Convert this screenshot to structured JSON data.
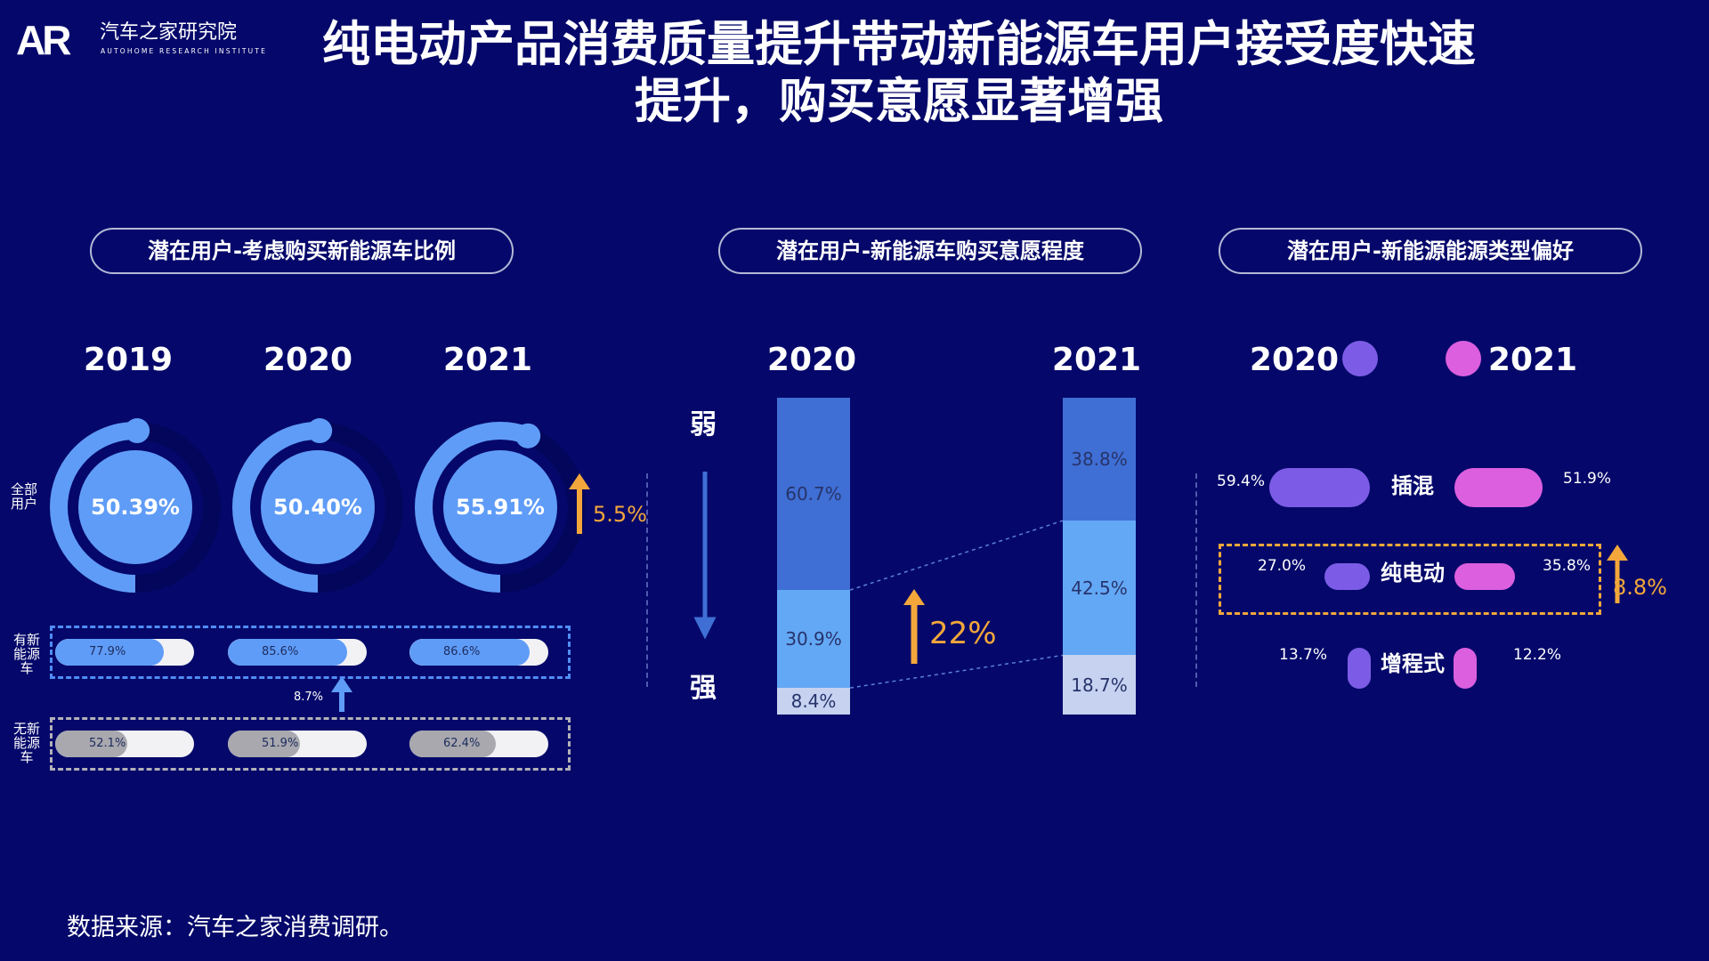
{
  "header": {
    "logo_mark": "AR",
    "logo_cn": "汽车之家研究院",
    "logo_en": "AUTOHOME RESEARCH INSTITUTE",
    "title_line1": "纯电动产品消费质量提升带动新能源车用户接受度快速",
    "title_line2": "提升，购买意愿显著增强"
  },
  "sections": {
    "left": "潜在用户-考虑购买新能源车比例",
    "middle": "潜在用户-新能源车购买意愿程度",
    "right": "潜在用户-新能源能源类型偏好"
  },
  "colors": {
    "background": "#05086a",
    "ring": "#5f9cf7",
    "ring_track": "#03065a",
    "accent_orange": "#f3a73b",
    "year_2020": "#7c5ce6",
    "year_2021": "#dc5fe0",
    "seg_weak": "#3f6fd4",
    "seg_mid": "#63a8f5",
    "seg_strong": "#c6d2f0"
  },
  "chart_data": [
    {
      "type": "pie",
      "title": "潜在用户-考虑购买新能源车比例",
      "row_labels": {
        "all": "全部\n用户",
        "has": "有新\n能源\n车",
        "none": "无新\n能源\n车"
      },
      "categories": [
        "2019",
        "2020",
        "2021"
      ],
      "series": [
        {
          "name": "全部用户",
          "values": [
            50.39,
            50.4,
            55.91
          ],
          "labels": [
            "50.39%",
            "50.40%",
            "55.91%"
          ]
        },
        {
          "name": "有新能源车",
          "values": [
            77.9,
            85.6,
            86.6
          ],
          "labels": [
            "77.9%",
            "85.6%",
            "86.6%"
          ]
        },
        {
          "name": "无新能源车",
          "values": [
            52.1,
            51.9,
            62.4
          ],
          "labels": [
            "52.1%",
            "51.9%",
            "62.4%"
          ]
        }
      ],
      "annotations": {
        "ring_increase": "5.5%",
        "gap_increase": "8.7%"
      }
    },
    {
      "type": "bar",
      "title": "潜在用户-新能源车购买意愿程度",
      "categories": [
        "2020",
        "2021"
      ],
      "axis_top": "弱",
      "axis_bottom": "强",
      "series": [
        {
          "values": [
            60.7,
            38.8
          ],
          "labels": [
            "60.7%",
            "38.8%"
          ]
        },
        {
          "values": [
            30.9,
            42.5
          ],
          "labels": [
            "30.9%",
            "42.5%"
          ]
        },
        {
          "values": [
            8.4,
            18.7
          ],
          "labels": [
            "8.4%",
            "18.7%"
          ]
        }
      ],
      "annotations": {
        "increase": "22%"
      }
    },
    {
      "type": "bar",
      "title": "潜在用户-新能源能源类型偏好",
      "categories": [
        "插混",
        "纯电动",
        "增程式"
      ],
      "series": [
        {
          "name": "2020",
          "values": [
            59.4,
            27.0,
            13.7
          ],
          "labels": [
            "59.4%",
            "27.0%",
            "13.7%"
          ]
        },
        {
          "name": "2021",
          "values": [
            51.9,
            35.8,
            12.2
          ],
          "labels": [
            "51.9%",
            "35.8%",
            "12.2%"
          ]
        }
      ],
      "annotations": {
        "increase": "8.8%"
      }
    }
  ],
  "footer": "数据来源：汽车之家消费调研。"
}
